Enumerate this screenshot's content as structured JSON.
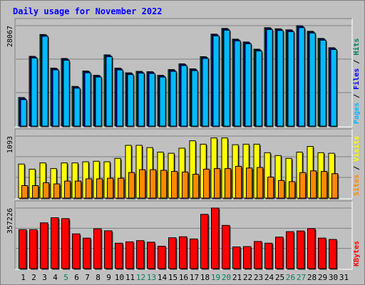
{
  "chart_data": [
    {
      "type": "bar",
      "panel": "pages-files-hits",
      "title": "Daily usage for November 2022",
      "categories": [
        "1",
        "2",
        "3",
        "4",
        "5",
        "6",
        "7",
        "8",
        "9",
        "10",
        "11",
        "12",
        "13",
        "14",
        "15",
        "16",
        "17",
        "18",
        "19",
        "20",
        "21",
        "22",
        "23",
        "24",
        "25",
        "26",
        "27",
        "28",
        "29",
        "30",
        "31"
      ],
      "ymax_label": "28067",
      "ylim": [
        0,
        28067
      ],
      "series": [
        {
          "name": "Hits",
          "color": "#00805c",
          "values": [
            8000,
            19500,
            25600,
            16200,
            18900,
            11100,
            15400,
            14200,
            19900,
            16200,
            14900,
            15300,
            15200,
            14200,
            15800,
            17400,
            16000,
            19400,
            25700,
            27300,
            24300,
            23500,
            21500,
            27500,
            27200,
            26900,
            28067,
            26500,
            24500,
            21900,
            null
          ]
        },
        {
          "name": "Files",
          "color": "#0000ff",
          "values": [
            7700,
            19300,
            25400,
            16000,
            18700,
            10900,
            15200,
            14000,
            19700,
            16000,
            14700,
            15100,
            15000,
            14000,
            15600,
            17200,
            15800,
            19200,
            25500,
            27100,
            24100,
            23300,
            21300,
            27300,
            27000,
            26700,
            27800,
            26300,
            24300,
            21700,
            null
          ]
        },
        {
          "name": "Pages",
          "color": "#00bbff",
          "values": [
            7400,
            19000,
            25100,
            15700,
            18400,
            10600,
            14900,
            13700,
            19400,
            15700,
            14400,
            14800,
            14700,
            13700,
            15300,
            16900,
            15500,
            18900,
            25200,
            26800,
            23800,
            23000,
            21000,
            27000,
            26700,
            26400,
            27500,
            26000,
            24000,
            21400,
            null
          ]
        }
      ],
      "legend": [
        "Pages",
        "Files",
        "Hits"
      ],
      "xlabel": "",
      "ylabel": "",
      "grid": true
    },
    {
      "type": "bar",
      "panel": "sites-visits",
      "categories": [
        "1",
        "2",
        "3",
        "4",
        "5",
        "6",
        "7",
        "8",
        "9",
        "10",
        "11",
        "12",
        "13",
        "14",
        "15",
        "16",
        "17",
        "18",
        "19",
        "20",
        "21",
        "22",
        "23",
        "24",
        "25",
        "26",
        "27",
        "28",
        "29",
        "30",
        "31"
      ],
      "ymax_label": "1093",
      "ylim": [
        0,
        1093
      ],
      "series": [
        {
          "name": "Visits",
          "color": "#ffff00",
          "values": [
            600,
            510,
            620,
            520,
            620,
            620,
            640,
            650,
            640,
            700,
            930,
            930,
            890,
            810,
            790,
            880,
            1010,
            950,
            1060,
            1060,
            940,
            950,
            950,
            800,
            750,
            700,
            810,
            910,
            800,
            790,
            null
          ]
        },
        {
          "name": "Sites",
          "color": "#ff8800",
          "values": [
            220,
            220,
            270,
            250,
            300,
            300,
            340,
            340,
            350,
            350,
            450,
            500,
            500,
            490,
            470,
            460,
            420,
            510,
            520,
            520,
            560,
            530,
            540,
            370,
            310,
            290,
            450,
            480,
            470,
            430,
            null
          ]
        }
      ],
      "legend": [
        "Sites",
        "Visits"
      ],
      "xlabel": "",
      "ylabel": "",
      "grid": true
    },
    {
      "type": "bar",
      "panel": "kbytes",
      "categories": [
        "1",
        "2",
        "3",
        "4",
        "5",
        "6",
        "7",
        "8",
        "9",
        "10",
        "11",
        "12",
        "13",
        "14",
        "15",
        "16",
        "17",
        "18",
        "19",
        "20",
        "21",
        "22",
        "23",
        "24",
        "25",
        "26",
        "27",
        "28",
        "29",
        "30",
        "31"
      ],
      "ymax_label": "357226",
      "ylim": [
        0,
        357226
      ],
      "series": [
        {
          "name": "KBytes",
          "color": "#ff0000",
          "values": [
            230000,
            230000,
            270000,
            300000,
            295000,
            205000,
            180000,
            235000,
            223000,
            150000,
            158000,
            165000,
            156000,
            132000,
            182000,
            188000,
            175000,
            320000,
            357226,
            255000,
            128000,
            130000,
            160000,
            150000,
            186000,
            218000,
            222000,
            236000,
            180000,
            172000,
            null
          ]
        }
      ],
      "legend": [
        "KBytes"
      ],
      "xlabel": "",
      "ylabel": "",
      "grid": true
    }
  ],
  "x_tick_colors": [
    "#000000",
    "#000000",
    "#000000",
    "#000000",
    "#00805c",
    "#000000",
    "#000000",
    "#000000",
    "#000000",
    "#000000",
    "#000000",
    "#00805c",
    "#00805c",
    "#000000",
    "#000000",
    "#000000",
    "#000000",
    "#000000",
    "#00805c",
    "#00805c",
    "#000000",
    "#000000",
    "#000000",
    "#000000",
    "#000000",
    "#00805c",
    "#00805c",
    "#000000",
    "#000000",
    "#000000",
    "#000000"
  ],
  "colors": {
    "page_bg": "#c0c0c0",
    "plot_bg": "#c0c0c0",
    "title": "#0000ff",
    "border_light": "#ffffff",
    "border_dark": "#808080",
    "separator": "#000000"
  }
}
